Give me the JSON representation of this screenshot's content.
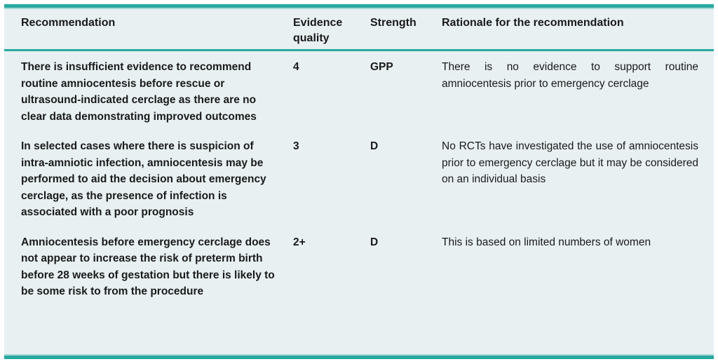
{
  "table": {
    "columns": [
      "Recommendation",
      "Evidence quality",
      "Strength",
      "Rationale for the recommendation"
    ],
    "rows": [
      {
        "recommendation": "There is insufficient evidence to recommend routine amniocentesis before rescue or ultrasound-indicated cerclage as there are no clear data demonstrating improved outcomes",
        "evidence_quality": "4",
        "strength": "GPP",
        "rationale": "There is no evidence to support routine amniocentesis prior to emergency cerclage"
      },
      {
        "recommendation": "In selected cases where there is suspicion of intra-amniotic infection, amniocentesis may be performed to aid the decision about emergency cerclage, as the presence of infection is associated with a poor prognosis",
        "evidence_quality": "3",
        "strength": "D",
        "rationale": "No RCTs have investigated the use of amniocentesis prior to emergency cerclage but it may be considered on an individual basis"
      },
      {
        "recommendation": "Amniocentesis before emergency cerclage does not appear to increase the risk of preterm birth before 28 weeks of gestation but there is likely to be some risk to from the procedure",
        "evidence_quality": "2+",
        "strength": "D",
        "rationale": "This is based on limited numbers of women"
      }
    ],
    "colors": {
      "accent_teal": "#27a8a0",
      "accent_teal_light": "#a3dad5",
      "table_background": "#e8f0f2",
      "text": "#1a1a1a"
    }
  }
}
